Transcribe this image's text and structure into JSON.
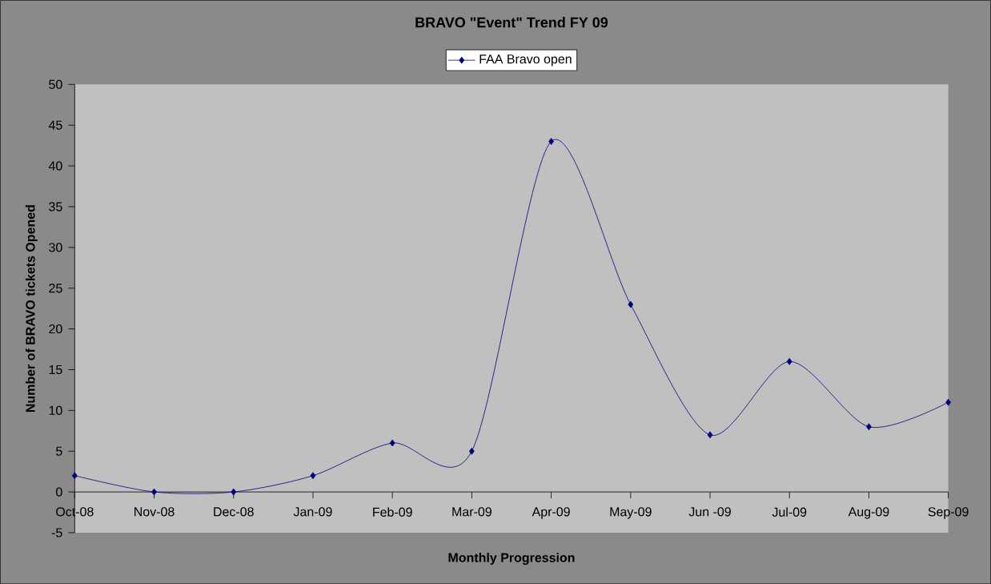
{
  "chart_data": {
    "type": "line",
    "title": "BRAVO \"Event\" Trend FY 09",
    "xlabel": "Monthly Progression",
    "ylabel": "Number of BRAVO tickets Opened",
    "categories": [
      "Oct-08",
      "Nov-08",
      "Dec-08",
      "Jan-09",
      "Feb-09",
      "Mar-09",
      "Apr-09",
      "May-09",
      "Jun -09",
      "Jul-09",
      "Aug-09",
      "Sep-09"
    ],
    "series": [
      {
        "name": "FAA Bravo open",
        "color": "#000080",
        "values": [
          2,
          0,
          0,
          2,
          6,
          5,
          43,
          23,
          7,
          16,
          8,
          11
        ]
      }
    ],
    "ylim": [
      -5,
      50
    ],
    "yticks": [
      -5,
      0,
      5,
      10,
      15,
      20,
      25,
      30,
      35,
      40,
      45,
      50
    ],
    "legend": "top",
    "marker": "diamond",
    "line_style": "solid"
  }
}
